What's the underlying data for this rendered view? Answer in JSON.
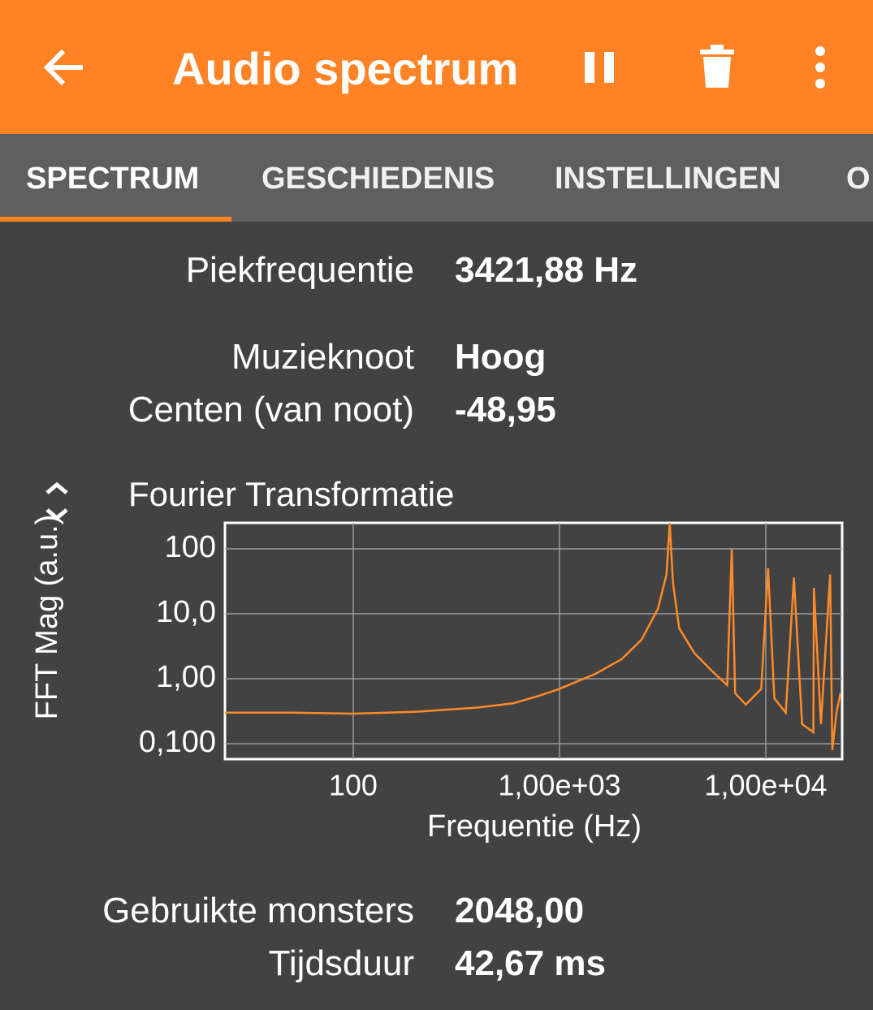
{
  "app_bar": {
    "title": "Audio spectrum"
  },
  "tabs": [
    "SPECTRUM",
    "GESCHIEDENIS",
    "INSTELLINGEN",
    "O"
  ],
  "readouts_top": [
    [
      "Piekfrequentie",
      "3421,88 Hz"
    ],
    [
      "Muzieknoot",
      "Hoog"
    ],
    [
      "Centen (van noot)",
      "-48,95"
    ]
  ],
  "readouts_bottom": [
    [
      "Gebruikte monsters",
      "2048,00"
    ],
    [
      "Tijdsduur",
      "42,67 ms"
    ]
  ],
  "chart_data": {
    "type": "line",
    "title": "Fourier Transformatie",
    "x_label": "Frequentie (Hz)",
    "y_label": "FFT Mag (a.u.)",
    "log_x": true,
    "log_y": true,
    "grid": true,
    "xlim": [
      23.9,
      23440
    ],
    "ylim": [
      0.0579,
      251
    ],
    "xticks": [
      100,
      {
        "value": 1000,
        "label": "1,00e+03"
      },
      {
        "value": 10000,
        "label": "1,00e+04"
      }
    ],
    "yticks": [
      100,
      {
        "value": 10,
        "label": "10,0"
      },
      {
        "value": 1,
        "label": "1,00"
      },
      {
        "value": 0.1,
        "label": "0,100"
      }
    ],
    "series": [
      {
        "color": "#ff8a28",
        "x": [
          23.9,
          50,
          100,
          200,
          400,
          600,
          800,
          1000,
          1500,
          2000,
          2500,
          3000,
          3300,
          3421.88,
          3550,
          3800,
          4500,
          5500,
          6500,
          6840,
          7100,
          8000,
          9500,
          10260,
          11000,
          12500,
          13680,
          15000,
          17000,
          17100,
          18500,
          20500,
          21000,
          22000,
          23000
        ],
        "values": [
          0.3,
          0.3,
          0.29,
          0.31,
          0.36,
          0.42,
          0.55,
          0.7,
          1.2,
          2.0,
          4,
          12,
          40,
          250,
          30,
          6,
          2.5,
          1.3,
          0.8,
          100,
          0.6,
          0.4,
          0.7,
          50,
          0.5,
          0.3,
          36,
          0.2,
          0.15,
          25,
          0.2,
          40,
          0.08,
          0.3,
          0.6
        ]
      }
    ]
  }
}
